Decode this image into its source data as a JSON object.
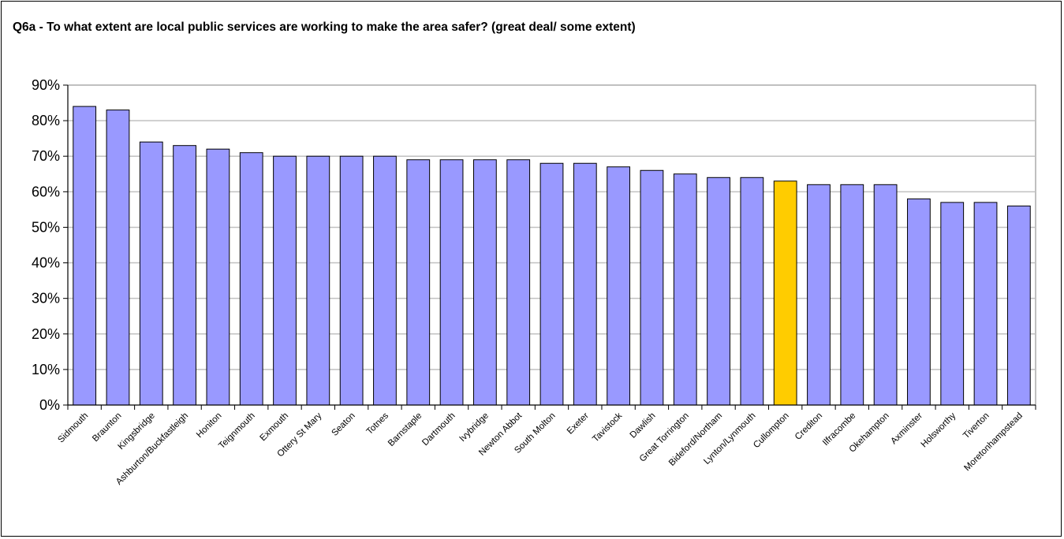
{
  "chart_data": {
    "type": "bar",
    "title": "Q6a - To what extent are local public services are working to make the area safer? (great deal/ some extent)",
    "xlabel": "",
    "ylabel": "",
    "ylim": [
      0,
      90
    ],
    "yticks": [
      "0%",
      "10%",
      "20%",
      "30%",
      "40%",
      "50%",
      "60%",
      "70%",
      "80%",
      "90%"
    ],
    "grid": true,
    "legend": "none",
    "bar_color": "#9999ff",
    "highlight_color": "#ffcc00",
    "highlight_category": "Cullompton",
    "categories": [
      "Sidmouth",
      "Braunton",
      "Kingsbridge",
      "Ashburton/Buckfastleigh",
      "Honiton",
      "Teignmouth",
      "Exmouth",
      "Ottery St Mary",
      "Seaton",
      "Totnes",
      "Barnstaple",
      "Dartmouth",
      "Ivybridge",
      "Newton Abbot",
      "South Molton",
      "Exeter",
      "Tavistock",
      "Dawlish",
      "Great Torrington",
      "Bideford/Northam",
      "Lynton/Lynmouth",
      "Cullompton",
      "Crediton",
      "Ilfracombe",
      "Okehampton",
      "Axminster",
      "Holsworthy",
      "Tiverton",
      "Moretonhampstead"
    ],
    "values": [
      84,
      83,
      74,
      73,
      72,
      71,
      70,
      70,
      70,
      70,
      69,
      69,
      69,
      69,
      68,
      68,
      67,
      66,
      65,
      64,
      64,
      63,
      62,
      62,
      62,
      58,
      57,
      57,
      56
    ]
  }
}
